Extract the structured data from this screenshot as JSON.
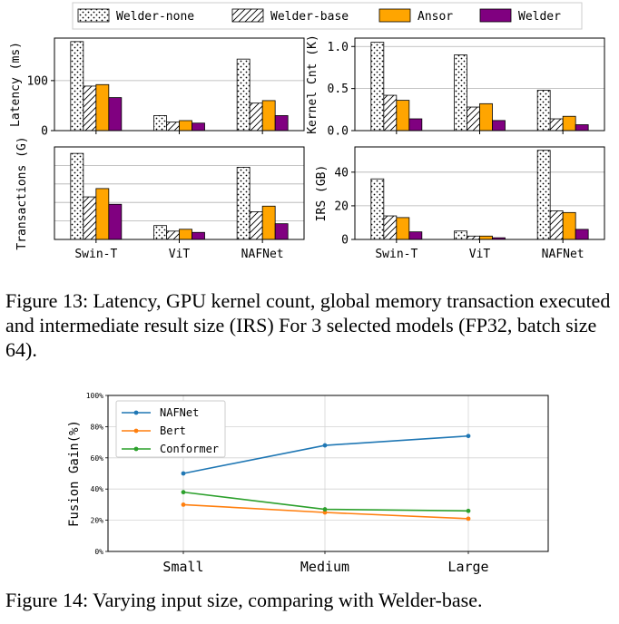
{
  "legend": [
    {
      "label": "Welder-none",
      "fill": "#ffffff",
      "pattern": "dots"
    },
    {
      "label": "Welder-base",
      "fill": "#ffffff",
      "pattern": "hatch"
    },
    {
      "label": "Ansor",
      "fill": "#ffa500",
      "pattern": "none"
    },
    {
      "label": "Welder",
      "fill": "#800080",
      "pattern": "none"
    }
  ],
  "captions": {
    "fig13": "Figure 13: Latency, GPU kernel count, global memory transaction executed and intermediate result size (IRS) For 3 selected models (FP32, batch size 64).",
    "fig14": "Figure 14: Varying input size, comparing with Welder-base."
  },
  "chart_data": [
    {
      "type": "bar",
      "ylabel": "Latency (ms)",
      "categories": [
        "Swin-T",
        "ViT",
        "NAFNet"
      ],
      "ylim": [
        0,
        185
      ],
      "yticks": [
        0,
        100
      ],
      "show_xticklabels": false,
      "grid": "y",
      "series": [
        {
          "name": "Welder-none",
          "values": [
            178,
            30,
            143
          ]
        },
        {
          "name": "Welder-base",
          "values": [
            89,
            17,
            55
          ]
        },
        {
          "name": "Ansor",
          "values": [
            92,
            20,
            60
          ]
        },
        {
          "name": "Welder",
          "values": [
            66,
            15,
            30
          ]
        }
      ]
    },
    {
      "type": "bar",
      "ylabel": "Kernel Cnt (K)",
      "categories": [
        "Swin-T",
        "ViT",
        "NAFNet"
      ],
      "ylim": [
        0,
        1.1
      ],
      "yticks": [
        "0.0",
        "0.5",
        "1.0"
      ],
      "show_xticklabels": false,
      "grid": "y",
      "series": [
        {
          "name": "Welder-none",
          "values": [
            1.05,
            0.9,
            0.48
          ]
        },
        {
          "name": "Welder-base",
          "values": [
            0.42,
            0.28,
            0.14
          ]
        },
        {
          "name": "Ansor",
          "values": [
            0.36,
            0.32,
            0.17
          ]
        },
        {
          "name": "Welder",
          "values": [
            0.14,
            0.12,
            0.07
          ]
        }
      ]
    },
    {
      "type": "bar",
      "ylabel": "Transactions (G)",
      "categories": [
        "Swin-T",
        "ViT",
        "NAFNet"
      ],
      "ylim": [
        0,
        5
      ],
      "yticks": [],
      "show_xticklabels": true,
      "grid": "y",
      "series": [
        {
          "name": "Welder-none",
          "values": [
            4.65,
            0.75,
            3.9
          ]
        },
        {
          "name": "Welder-base",
          "values": [
            2.3,
            0.45,
            1.5
          ]
        },
        {
          "name": "Ansor",
          "values": [
            2.75,
            0.55,
            1.8
          ]
        },
        {
          "name": "Welder",
          "values": [
            1.9,
            0.38,
            0.85
          ]
        }
      ]
    },
    {
      "type": "bar",
      "ylabel": "IRS (GB)",
      "categories": [
        "Swin-T",
        "ViT",
        "NAFNet"
      ],
      "ylim": [
        0,
        55
      ],
      "yticks": [
        0,
        20,
        40
      ],
      "show_xticklabels": true,
      "grid": "y",
      "series": [
        {
          "name": "Welder-none",
          "values": [
            36,
            5,
            53
          ]
        },
        {
          "name": "Welder-base",
          "values": [
            14,
            2,
            17
          ]
        },
        {
          "name": "Ansor",
          "values": [
            13,
            2,
            16
          ]
        },
        {
          "name": "Welder",
          "values": [
            4.5,
            1,
            6
          ]
        }
      ]
    },
    {
      "type": "line",
      "ylabel": "Fusion Gain(%)",
      "categories": [
        "Small",
        "Medium",
        "Large"
      ],
      "ylim": [
        0,
        100
      ],
      "yticks": [
        "0%",
        "20%",
        "40%",
        "60%",
        "80%",
        "100%"
      ],
      "grid": "both",
      "legend_position": "top-left",
      "series": [
        {
          "name": "NAFNet",
          "values": [
            50,
            68,
            74
          ],
          "color": "#1f77b4"
        },
        {
          "name": "Bert",
          "values": [
            30,
            25,
            21
          ],
          "color": "#ff7f0e"
        },
        {
          "name": "Conformer",
          "values": [
            38,
            27,
            26
          ],
          "color": "#2ca02c"
        }
      ]
    }
  ]
}
